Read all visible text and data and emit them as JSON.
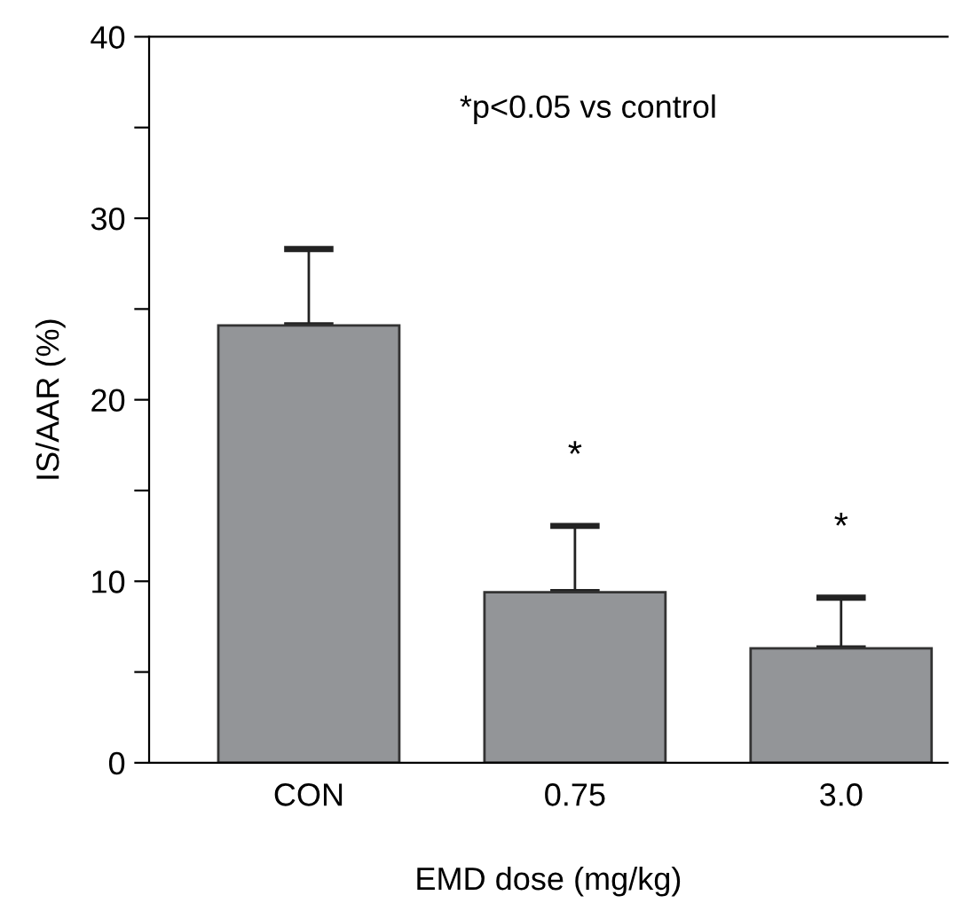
{
  "chart_data": {
    "type": "bar",
    "xlabel": "EMD dose (mg/kg)",
    "ylabel": "IS/AAR (%)",
    "categories": [
      "CON",
      "0.75",
      "3.0"
    ],
    "values": [
      24.1,
      9.4,
      6.3
    ],
    "errors": [
      [
        24.1,
        28.3
      ],
      [
        9.4,
        13.05
      ],
      [
        6.3,
        9.1
      ]
    ],
    "color": "#939598",
    "ylim": [
      0,
      40
    ],
    "yticks": [
      0,
      {
        "value": 5,
        "label": null
      },
      10,
      {
        "value": 15,
        "label": null
      },
      20,
      {
        "value": 25,
        "label": null
      },
      30,
      {
        "value": 35,
        "label": null
      },
      40
    ],
    "grid": false,
    "legend": false,
    "annotations": [
      "*p<0.05 vs control",
      "*",
      "*"
    ]
  }
}
